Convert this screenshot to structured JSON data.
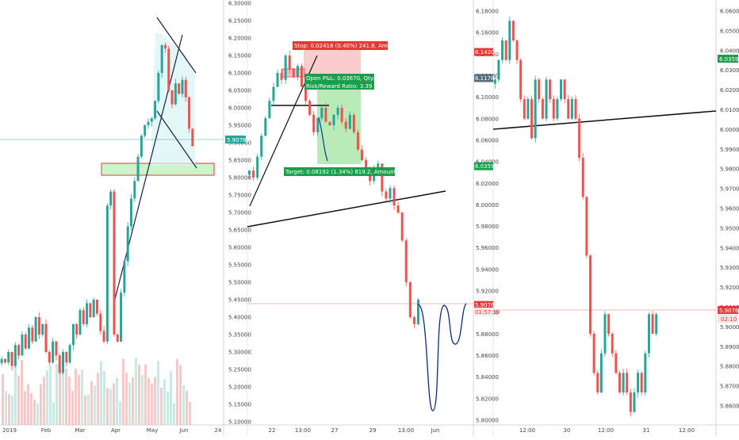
{
  "chart_data": [
    {
      "type": "candlestick",
      "title": "",
      "x_ticks": [
        "2019",
        "Feb",
        "Mar",
        "Apr",
        "May",
        "Jun",
        "24"
      ],
      "y_ticks": [
        "6.30000",
        "6.25000",
        "6.20000",
        "6.15000",
        "6.10000",
        "6.05000",
        "6.00000",
        "5.95000",
        "5.90000",
        "5.85000",
        "5.80000",
        "5.75000",
        "5.70000",
        "5.65000",
        "5.60000",
        "5.55000",
        "5.50000",
        "5.45000",
        "5.40000",
        "5.35000",
        "5.30000",
        "5.25000",
        "5.20000",
        "5.15000",
        "5.10000"
      ],
      "ylim": [
        5.1,
        6.3
      ],
      "current_price": {
        "value": 5.907,
        "label": "5.90765"
      },
      "close_series": [
        5.28,
        5.27,
        5.3,
        5.26,
        5.32,
        5.29,
        5.35,
        5.31,
        5.37,
        5.33,
        5.4,
        5.35,
        5.38,
        5.3,
        5.27,
        5.33,
        5.29,
        5.24,
        5.3,
        5.27,
        5.32,
        5.38,
        5.35,
        5.42,
        5.38,
        5.44,
        5.4,
        5.45,
        5.41,
        5.36,
        5.33,
        5.72,
        5.76,
        5.35,
        5.33,
        5.47,
        5.56,
        5.66,
        5.74,
        5.79,
        5.86,
        5.92,
        5.95,
        5.96,
        5.97,
        6.02,
        6.1,
        6.18,
        6.17,
        6.05,
        6.01,
        6.07,
        6.04,
        6.08,
        6.03,
        5.94,
        5.89
      ],
      "resistance_zone": [
        5.82,
        5.85
      ],
      "volume_bars": 60
    },
    {
      "type": "candlestick",
      "title": "",
      "x_ticks": [
        "22",
        "13:00",
        "27",
        "29",
        "13:00",
        "Jun"
      ],
      "y_ticks": [
        "6.30000",
        "6.25000",
        "6.20000",
        "6.15000",
        "6.10000",
        "6.05000",
        "6.00000",
        "5.95000",
        "5.90000",
        "5.85000",
        "5.80000",
        "5.75000",
        "5.70000",
        "5.65000",
        "5.60000",
        "5.55000",
        "5.50000",
        "5.45000",
        "5.40000",
        "5.35000",
        "5.30000",
        "5.25000",
        "5.20000",
        "5.15000",
        "5.10000"
      ],
      "ylim": [
        5.1,
        6.3
      ],
      "current_price": {
        "value": 5.907,
        "label": "5.90765"
      },
      "countdown": "01:57:10",
      "close_series": [
        5.82,
        5.8,
        5.86,
        5.92,
        5.97,
        6.02,
        6.06,
        6.1,
        6.08,
        6.15,
        6.11,
        6.09,
        6.12,
        6.06,
        6.02,
        5.98,
        5.93,
        5.97,
        6.0,
        5.96,
        5.95,
        5.98,
        6.0,
        5.96,
        5.94,
        5.98,
        5.93,
        5.88,
        5.85,
        5.82,
        5.79,
        5.83,
        5.84,
        5.76,
        5.74,
        5.77,
        5.72,
        5.7,
        5.62,
        5.5,
        5.4,
        5.38,
        5.45
      ],
      "position": {
        "stop_label": "Stop: 0.02418 (0.40%) 241.8, Amount: 750",
        "open_label": "Open P&L: 0.03670, Qty: 10339",
        "rr_label": "Risk/Reward Ratio: 3.39",
        "target_label": "Target: 0.08192 (1.34%) 819.2, Amount: 1845.92",
        "entry": 6.08,
        "stop": 6.12,
        "target": 5.82
      }
    },
    {
      "type": "candlestick",
      "title": "",
      "x_ticks": [
        "12:00",
        "30",
        "12:00",
        "31",
        "12:00"
      ],
      "y_ticks": [
        "6.18000",
        "6.16000",
        "6.14000",
        "6.12000",
        "6.10000",
        "6.08000",
        "6.06000",
        "6.04000",
        "6.02000",
        "6.00000",
        "5.98000",
        "5.96000",
        "5.94000",
        "5.92000",
        "5.90000",
        "5.88000",
        "5.86000",
        "5.84000",
        "5.82000",
        "5.80000"
      ],
      "ylim": [
        5.8,
        6.18
      ],
      "price_tags": [
        {
          "label": "6.14203",
          "value": 6.142,
          "color": "#e53935"
        },
        {
          "label": "6.11785",
          "value": 6.1178,
          "color": "#546e7a"
        },
        {
          "label": "6.03593",
          "value": 6.0359,
          "color": "#1b9e4b"
        },
        {
          "label": "5.90765",
          "value": 5.907,
          "color": "#e53935"
        }
      ]
    },
    {
      "type": "candlestick",
      "title": "",
      "y_ticks": [
        "6.06000",
        "6.05000",
        "6.04000",
        "6.03000",
        "6.02000",
        "6.01000",
        "6.00000",
        "5.99000",
        "5.98000",
        "5.97000",
        "5.96000",
        "5.95000",
        "5.94000",
        "5.93000",
        "5.92000",
        "5.91000",
        "5.90000",
        "5.89000",
        "5.88000",
        "5.87000",
        "5.86000"
      ],
      "ylim": [
        5.855,
        6.065
      ],
      "current_price": {
        "value": 5.907,
        "label": "5.90765"
      },
      "countdown": "02:10",
      "badge_price": {
        "label": "6.03593",
        "value": 6.0359
      },
      "close_series": [
        6.03,
        6.04,
        6.05,
        6.04,
        6.06,
        6.05,
        6.04,
        6.02,
        6.01,
        6.02,
        6.0,
        6.03,
        6.02,
        6.01,
        6.03,
        6.02,
        6.01,
        6.02,
        6.03,
        6.02,
        6.01,
        6.02,
        6.01,
        5.99,
        5.97,
        5.94,
        5.9,
        5.88,
        5.87,
        5.89,
        5.91,
        5.9,
        5.89,
        5.88,
        5.87,
        5.88,
        5.87,
        5.86,
        5.87,
        5.88,
        5.87,
        5.89,
        5.91,
        5.9,
        5.91
      ]
    }
  ]
}
